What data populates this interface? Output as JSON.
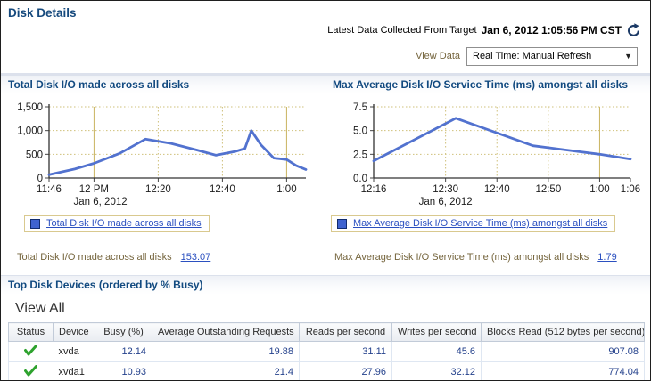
{
  "header": {
    "title": "Disk Details",
    "latest_label": "Latest Data Collected From Target",
    "latest_value": "Jan 6, 2012 1:05:56 PM CST",
    "refresh_icon": "refresh-circular-arrow"
  },
  "view_data": {
    "label": "View Data",
    "selected": "Real Time: Manual Refresh",
    "dropdown_icon": "chevron-down"
  },
  "colors": {
    "accent_navy": "#124a80",
    "line_blue": "#5272cf",
    "link_blue": "#2b50c0",
    "olive_label": "#75653d",
    "grid_tan": "#cfc07a",
    "status_green": "#2ea22e"
  },
  "chart_data": [
    {
      "type": "line",
      "title": "Total Disk I/O made across all disks",
      "legend": "Total Disk I/O made across all disks",
      "summary_label": "Total Disk I/O made across all disks",
      "summary_value": "153.07",
      "date_label": "Jan 6, 2012",
      "date_label_min": 16,
      "x_span": 80,
      "ylim": [
        0,
        1500
      ],
      "y_ticks": [
        {
          "label": "0",
          "value": 0
        },
        {
          "label": "500",
          "value": 500
        },
        {
          "label": "1,000",
          "value": 1000
        },
        {
          "label": "1,500",
          "value": 1500
        }
      ],
      "x_ticks": [
        {
          "label": "11:46",
          "min": 0,
          "style": "none"
        },
        {
          "label": "12 PM",
          "min": 14,
          "style": "solid"
        },
        {
          "label": "12:20",
          "min": 34,
          "style": "dotted"
        },
        {
          "label": "12:40",
          "min": 54,
          "style": "dotted"
        },
        {
          "label": "1:00",
          "min": 74,
          "style": "solid"
        }
      ],
      "points": [
        [
          0,
          70
        ],
        [
          8,
          190
        ],
        [
          14,
          310
        ],
        [
          22,
          520
        ],
        [
          30,
          820
        ],
        [
          38,
          730
        ],
        [
          46,
          590
        ],
        [
          52,
          480
        ],
        [
          58,
          560
        ],
        [
          61,
          620
        ],
        [
          63,
          1000
        ],
        [
          66,
          700
        ],
        [
          70,
          420
        ],
        [
          74,
          390
        ],
        [
          77,
          260
        ],
        [
          80,
          180
        ]
      ],
      "line_color": "#5272cf"
    },
    {
      "type": "line",
      "title": "Max Average Disk I/O Service Time (ms) amongst all disks",
      "legend": "Max Average Disk I/O Service Time (ms) amongst all disks",
      "summary_label": "Max Average Disk I/O Service Time (ms) amongst all disks",
      "summary_value": "1.79",
      "date_label": "Jan 6, 2012",
      "date_label_min": 14,
      "x_span": 50,
      "ylim": [
        0,
        7.5
      ],
      "y_ticks": [
        {
          "label": "0.0",
          "value": 0
        },
        {
          "label": "2.5",
          "value": 2.5
        },
        {
          "label": "5.0",
          "value": 5
        },
        {
          "label": "7.5",
          "value": 7.5
        }
      ],
      "x_ticks": [
        {
          "label": "12:16",
          "min": 0,
          "style": "none"
        },
        {
          "label": "12:30",
          "min": 14,
          "style": "dotted"
        },
        {
          "label": "12:40",
          "min": 24,
          "style": "dotted"
        },
        {
          "label": "12:50",
          "min": 34,
          "style": "dotted"
        },
        {
          "label": "1:00",
          "min": 44,
          "style": "solid"
        },
        {
          "label": "1:06",
          "min": 50,
          "style": "none"
        }
      ],
      "points": [
        [
          0,
          1.8
        ],
        [
          16,
          6.3
        ],
        [
          31,
          3.4
        ],
        [
          34,
          3.2
        ],
        [
          44,
          2.5
        ],
        [
          50,
          2.0
        ]
      ],
      "line_color": "#5272cf"
    }
  ],
  "top_disks": {
    "title": "Top Disk Devices (ordered by % Busy)",
    "view_all": "View All"
  },
  "table": {
    "columns": [
      "Status",
      "Device",
      "Busy (%)",
      "Average Outstanding Requests",
      "Reads per second",
      "Writes per second",
      "Blocks Read (512 bytes per second)"
    ],
    "rows": [
      {
        "status": "ok",
        "cells": [
          "xvda",
          "12.14",
          "19.88",
          "31.11",
          "45.6",
          "907.08"
        ]
      },
      {
        "status": "ok",
        "cells": [
          "xvda1",
          "10.93",
          "21.4",
          "27.96",
          "32.12",
          "774.04"
        ]
      }
    ]
  }
}
